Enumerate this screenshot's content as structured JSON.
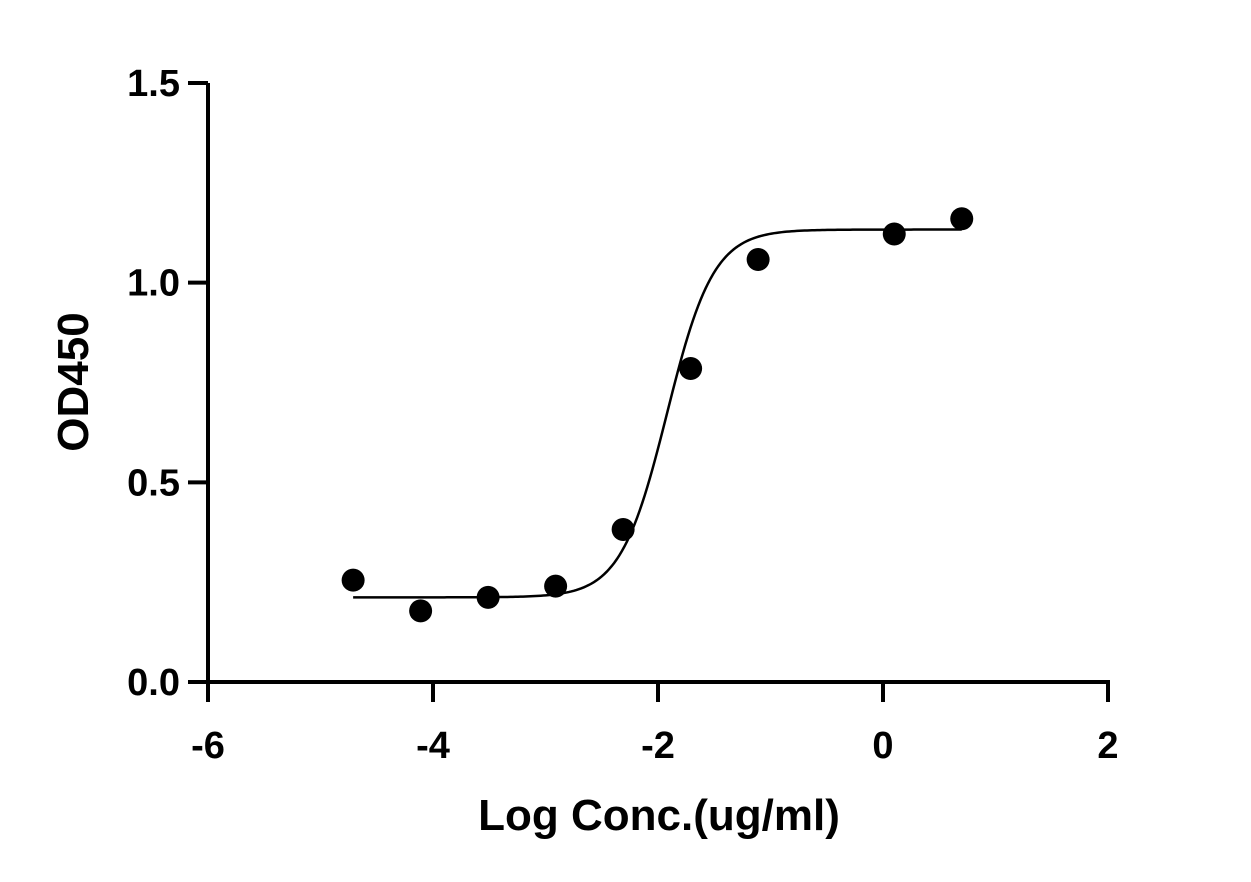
{
  "chart_data": {
    "type": "scatter",
    "xlabel": "Log Conc.(ug/ml)",
    "ylabel": "OD450",
    "xlim": [
      -6,
      2
    ],
    "ylim": [
      0,
      1.5
    ],
    "x_ticks": [
      "-6",
      "-4",
      "-2",
      "0",
      "2"
    ],
    "y_ticks": [
      "0.0",
      "0.5",
      "1.0",
      "1.5"
    ],
    "grid": false,
    "legend": "none",
    "series": [
      {
        "points": [
          {
            "x": -4.71,
            "y": 0.255
          },
          {
            "x": -4.11,
            "y": 0.178
          },
          {
            "x": -3.51,
            "y": 0.212
          },
          {
            "x": -2.91,
            "y": 0.24
          },
          {
            "x": -2.31,
            "y": 0.382
          },
          {
            "x": -1.71,
            "y": 0.785
          },
          {
            "x": -1.11,
            "y": 1.058
          },
          {
            "x": 0.1,
            "y": 1.122
          },
          {
            "x": 0.7,
            "y": 1.16
          }
        ],
        "fit": {
          "model": "4PL",
          "bottom": 0.212,
          "top": 1.133,
          "logEC50": -1.92,
          "hill": 2.1,
          "x_range": [
            -4.71,
            0.7
          ]
        }
      }
    ],
    "colors": {
      "axis": "#000000",
      "marker": "#000000",
      "curve": "#000000"
    }
  }
}
